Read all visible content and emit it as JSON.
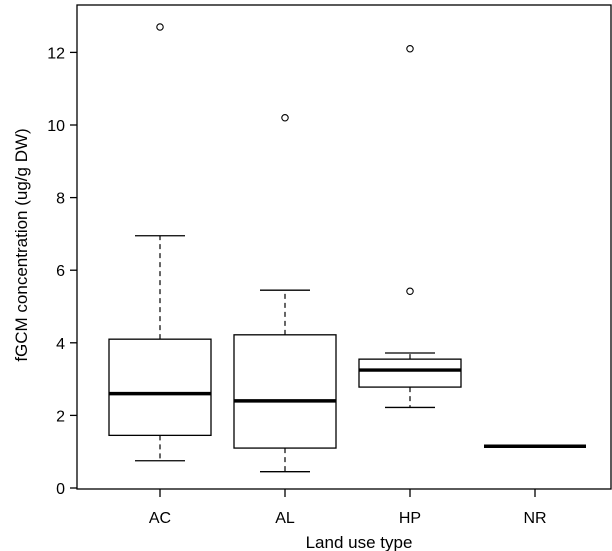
{
  "chart_data": {
    "type": "box",
    "title": "",
    "xlabel": "Land use type",
    "ylabel": "fGCM concentration (ug/g DW)",
    "ylim": [
      0,
      13
    ],
    "yticks": [
      0,
      2,
      4,
      6,
      8,
      10,
      12
    ],
    "ytick_labels": [
      "0",
      "2",
      "4",
      "6",
      "8",
      "10",
      "12"
    ],
    "grid": false,
    "categories": [
      "AC",
      "AL",
      "HP",
      "NR"
    ],
    "boxes": [
      {
        "category": "AC",
        "whisker_low": 0.75,
        "q1": 1.45,
        "median": 2.6,
        "q3": 4.1,
        "whisker_high": 6.95,
        "outliers": [
          12.7
        ]
      },
      {
        "category": "AL",
        "whisker_low": 0.45,
        "q1": 1.1,
        "median": 2.4,
        "q3": 4.22,
        "whisker_high": 5.45,
        "outliers": [
          10.2
        ]
      },
      {
        "category": "HP",
        "whisker_low": 2.22,
        "q1": 2.78,
        "median": 3.25,
        "q3": 3.55,
        "whisker_high": 3.72,
        "outliers": [
          12.1,
          5.42
        ]
      },
      {
        "category": "NR",
        "whisker_low": 1.15,
        "q1": 1.15,
        "median": 1.15,
        "q3": 1.15,
        "whisker_high": 1.15,
        "outliers": []
      }
    ]
  }
}
